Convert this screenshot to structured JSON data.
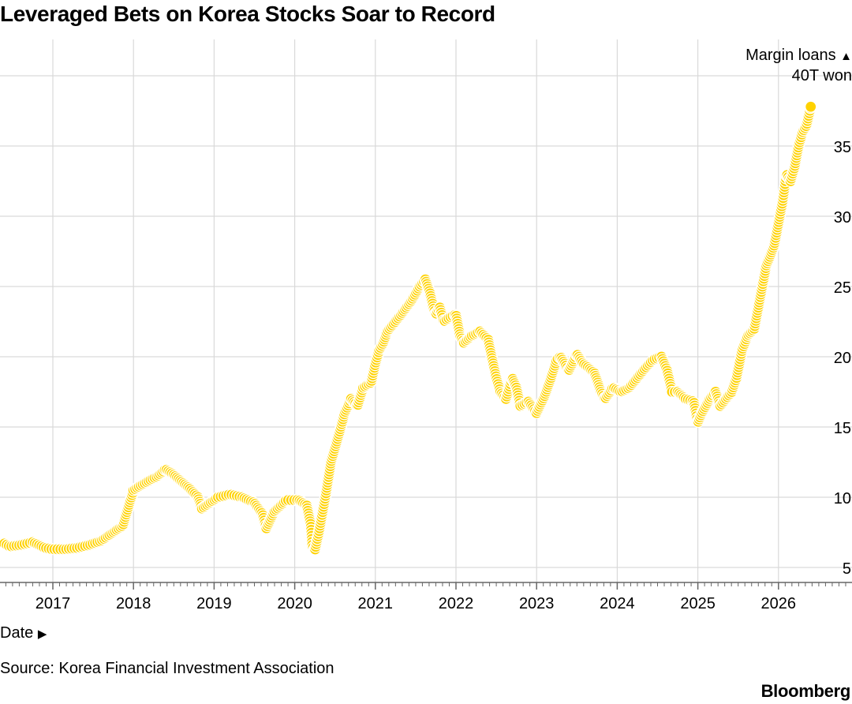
{
  "title": "Leveraged Bets on Korea Stocks Soar to Record",
  "y_axis_label": {
    "line1": "Margin loans",
    "line2": "40T won",
    "arrow": "▲"
  },
  "x_axis_label": {
    "text": "Date",
    "arrow": "▶"
  },
  "source": "Source: Korea Financial Investment Association",
  "brand": "Bloomberg",
  "colors": {
    "dot": "#FFD200",
    "grid": "#d9d9d9",
    "axis": "#666666",
    "text": "#000000"
  },
  "chart_data": {
    "type": "scatter",
    "title": "Leveraged Bets on Korea Stocks Soar to Record",
    "xlabel": "Date",
    "ylabel": "Margin loans",
    "x_ticks": [
      "2017",
      "2018",
      "2019",
      "2020",
      "2021",
      "2022",
      "2023",
      "2024",
      "2025",
      "2026"
    ],
    "y_ticks": [
      "5",
      "10",
      "15",
      "20",
      "25",
      "30",
      "35",
      "40T won"
    ],
    "xlim": [
      2016.4,
      2026.9
    ],
    "ylim": [
      4,
      40
    ],
    "grid": true,
    "series": [
      {
        "name": "Margin loans",
        "x": [
          2016.4,
          2016.47,
          2016.6,
          2016.75,
          2016.9,
          2017.0,
          2017.15,
          2017.3,
          2017.45,
          2017.6,
          2017.75,
          2017.87,
          2018.0,
          2018.08,
          2018.2,
          2018.3,
          2018.4,
          2018.5,
          2018.6,
          2018.7,
          2018.8,
          2018.85,
          2018.95,
          2019.05,
          2019.2,
          2019.35,
          2019.5,
          2019.6,
          2019.65,
          2019.75,
          2019.9,
          2020.05,
          2020.15,
          2020.2,
          2020.22,
          2020.25,
          2020.3,
          2020.38,
          2020.45,
          2020.55,
          2020.62,
          2020.7,
          2020.78,
          2020.85,
          2020.95,
          2021.0,
          2021.05,
          2021.1,
          2021.15,
          2021.22,
          2021.32,
          2021.45,
          2021.55,
          2021.62,
          2021.68,
          2021.72,
          2021.75,
          2021.8,
          2021.85,
          2021.92,
          2022.0,
          2022.05,
          2022.1,
          2022.2,
          2022.3,
          2022.4,
          2022.45,
          2022.5,
          2022.55,
          2022.62,
          2022.7,
          2022.75,
          2022.8,
          2022.9,
          2023.0,
          2023.1,
          2023.18,
          2023.25,
          2023.3,
          2023.4,
          2023.5,
          2023.58,
          2023.65,
          2023.72,
          2023.8,
          2023.85,
          2023.95,
          2024.05,
          2024.15,
          2024.25,
          2024.35,
          2024.45,
          2024.55,
          2024.62,
          2024.68,
          2024.75,
          2024.85,
          2024.95,
          2025.0,
          2025.05,
          2025.15,
          2025.22,
          2025.28,
          2025.35,
          2025.42,
          2025.48,
          2025.55,
          2025.62,
          2025.7,
          2025.75,
          2025.8,
          2025.85,
          2025.9,
          2025.95,
          2026.0,
          2026.05,
          2026.1,
          2026.15,
          2026.2,
          2026.25,
          2026.3,
          2026.35,
          2026.4
        ],
        "values": [
          6.7,
          6.5,
          6.6,
          6.8,
          6.4,
          6.3,
          6.3,
          6.4,
          6.6,
          6.9,
          7.5,
          8.0,
          10.5,
          10.8,
          11.2,
          11.5,
          12.0,
          11.6,
          11.1,
          10.6,
          10.0,
          9.2,
          9.6,
          10.0,
          10.2,
          10.0,
          9.6,
          8.8,
          7.8,
          9.0,
          9.8,
          9.8,
          9.4,
          8.0,
          6.5,
          6.2,
          7.5,
          10.0,
          12.5,
          14.5,
          16.0,
          17.0,
          16.5,
          17.8,
          18.2,
          19.5,
          20.5,
          21.0,
          21.8,
          22.3,
          23.0,
          24.0,
          25.0,
          25.5,
          24.5,
          23.5,
          23.0,
          23.5,
          22.5,
          22.8,
          23.0,
          21.5,
          21.0,
          21.5,
          21.8,
          21.2,
          19.8,
          18.5,
          17.5,
          17.0,
          18.5,
          17.8,
          16.5,
          16.8,
          16.0,
          17.2,
          18.5,
          19.8,
          20.0,
          19.0,
          20.2,
          19.5,
          19.2,
          18.8,
          17.5,
          17.0,
          17.8,
          17.5,
          17.8,
          18.5,
          19.2,
          19.8,
          20.0,
          19.0,
          17.5,
          17.5,
          17.0,
          16.8,
          15.3,
          16.0,
          17.0,
          17.5,
          16.5,
          17.0,
          17.5,
          18.5,
          20.5,
          21.5,
          22.0,
          23.5,
          25.0,
          26.5,
          27.2,
          28.0,
          29.5,
          31.0,
          33.0,
          32.5,
          33.5,
          35.0,
          36.0,
          36.5,
          37.8
        ],
        "color": "#FFD200"
      }
    ]
  }
}
